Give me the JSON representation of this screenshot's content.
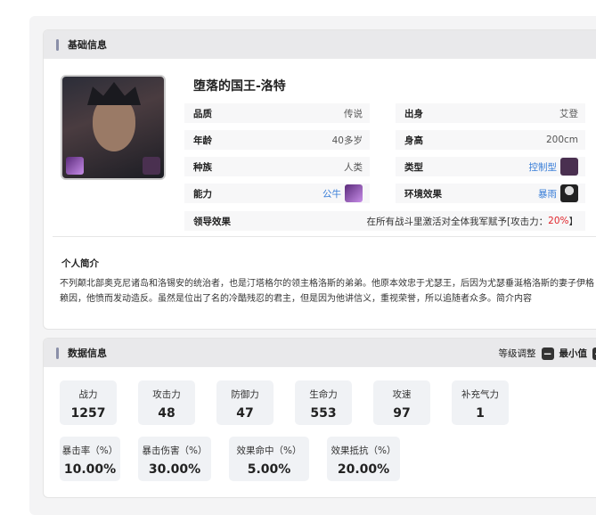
{
  "basic": {
    "section_title": "基础信息",
    "name": "堕落的国王-洛特",
    "fields": [
      {
        "key": "品质",
        "value": "传说"
      },
      {
        "key": "出身",
        "value": "艾登"
      },
      {
        "key": "年龄",
        "value": "40多岁"
      },
      {
        "key": "身高",
        "value": "200cm"
      },
      {
        "key": "种族",
        "value": "人类"
      },
      {
        "key": "类型",
        "value": "控制型",
        "icon": "control-type-icon"
      },
      {
        "key": "能力",
        "value": "公牛",
        "icon": "bull-icon"
      },
      {
        "key": "环境效果",
        "value": "暴雨",
        "icon": "rainstorm-icon"
      }
    ],
    "leadership": {
      "key": "领导效果",
      "value_prefix": "在所有战斗里激活对全体我军赋予[攻击力：",
      "value_highlight": "20%",
      "value_suffix": "】"
    },
    "intro_title": "个人简介",
    "intro": "不列颠北部奥克尼诸岛和洛锡安的统治者，也是汀塔格尔的领主格洛斯的弟弟。他原本效忠于尤瑟王，后因为尤瑟垂涎格洛斯的妻子伊格赖因，他愤而发动造反。虽然是位出了名的冷酷残忍的君主，但是因为他讲信义，重视荣誉，所以追随者众多。简介内容"
  },
  "stats": {
    "section_title": "数据信息",
    "level_label": "等级调整",
    "level_value": "最小值",
    "minus": "−",
    "plus": "+",
    "row1": [
      {
        "label": "战力",
        "value": "1257"
      },
      {
        "label": "攻击力",
        "value": "48"
      },
      {
        "label": "防御力",
        "value": "47"
      },
      {
        "label": "生命力",
        "value": "553"
      },
      {
        "label": "攻速",
        "value": "97"
      },
      {
        "label": "补充气力",
        "value": "1"
      }
    ],
    "row2": [
      {
        "label": "暴击率（%）",
        "value": "10.00%"
      },
      {
        "label": "暴击伤害（%）",
        "value": "30.00%"
      },
      {
        "label": "效果命中（%）",
        "value": "5.00%"
      },
      {
        "label": "效果抵抗（%）",
        "value": "20.00%"
      }
    ]
  },
  "colors": {
    "accent": "#3b7fd8",
    "highlight": "#e0242a"
  }
}
